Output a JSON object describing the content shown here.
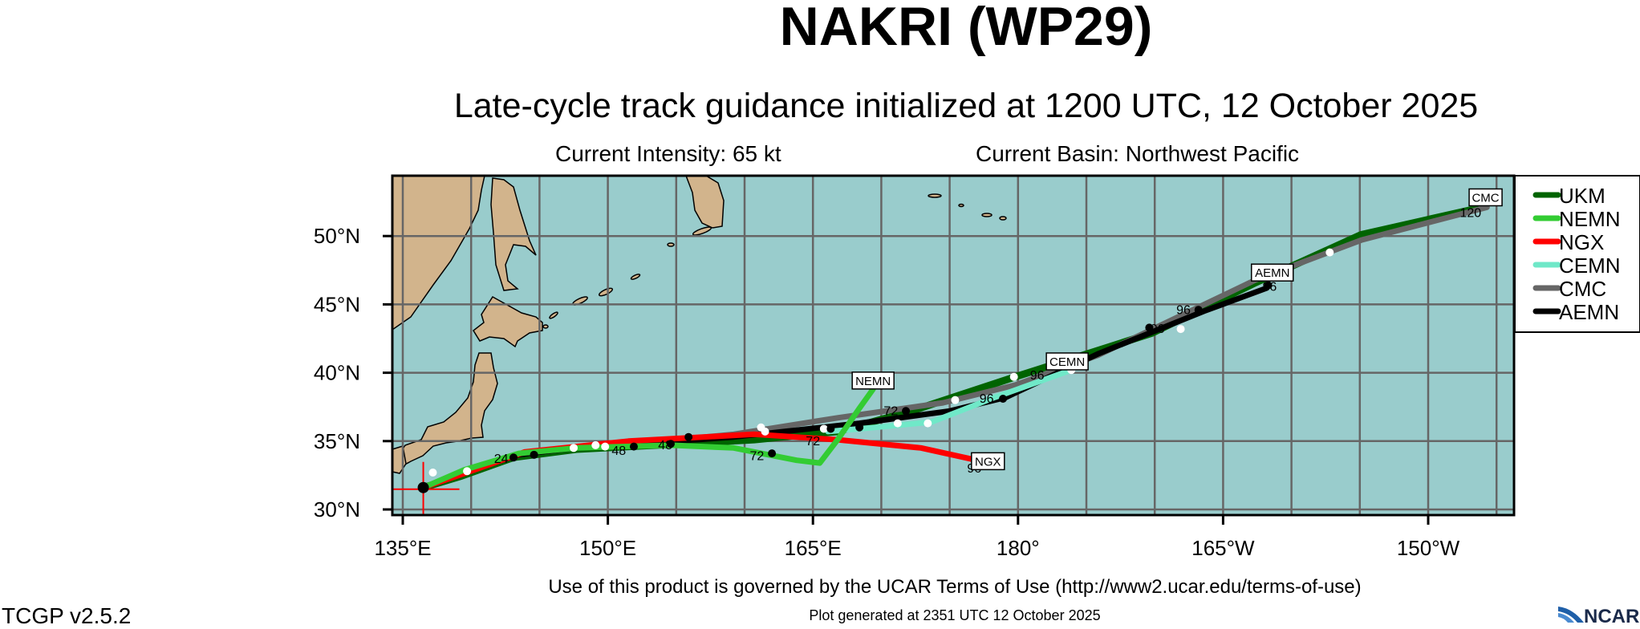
{
  "header": {
    "title": "NAKRI (WP29)",
    "subtitle": "Late-cycle track guidance initialized at 1200 UTC, 12 October 2025",
    "intensity": "Current Intensity: 65 kt",
    "basin": "Current Basin: Northwest Pacific"
  },
  "map": {
    "projection": "cylindrical equidistant",
    "lon_range": [
      134.3,
      216.4
    ],
    "lat_range": [
      29.6,
      54.4
    ],
    "grid_step_deg": 5,
    "ocean_color": "#99cccc",
    "land_color": "#d2b48c",
    "grid_color": "#666666",
    "lon_ticks": [
      {
        "lon": 135,
        "label": "135°E"
      },
      {
        "lon": 150,
        "label": "150°E"
      },
      {
        "lon": 165,
        "label": "165°E"
      },
      {
        "lon": 180,
        "label": "180°"
      },
      {
        "lon": 195,
        "label": "165°W"
      },
      {
        "lon": 210,
        "label": "150°W"
      }
    ],
    "lat_ticks": [
      {
        "lat": 30,
        "label": "30°N"
      },
      {
        "lat": 35,
        "label": "35°N"
      },
      {
        "lat": 40,
        "label": "40°N"
      },
      {
        "lat": 45,
        "label": "45°N"
      },
      {
        "lat": 50,
        "label": "50°N"
      }
    ],
    "initial_position": {
      "lon": 136.5,
      "lat": 31.6,
      "cross_color": "#ff0000"
    }
  },
  "tracks": [
    {
      "name": "UKM",
      "color": "#006400",
      "label_box": false,
      "points": [
        [
          136.5,
          31.6
        ],
        [
          139.3,
          32.45
        ],
        [
          143.1,
          33.8
        ],
        [
          147.7,
          34.4
        ],
        [
          155.4,
          34.8
        ],
        [
          160.7,
          35.1
        ],
        [
          166.8,
          35.7
        ],
        [
          172.2,
          37.2
        ],
        [
          179.8,
          39.7
        ],
        [
          189.8,
          42.9
        ],
        [
          197.4,
          46.6
        ],
        [
          205.1,
          50.1
        ],
        [
          213.5,
          52.0
        ]
      ]
    },
    {
      "name": "CMC",
      "color": "#666666",
      "label_box": true,
      "label_at": [
        214.2,
        52.8
      ],
      "points": [
        [
          136.5,
          31.6
        ],
        [
          139.5,
          32.7
        ],
        [
          143.5,
          34.0
        ],
        [
          150,
          34.8
        ],
        [
          155,
          35.1
        ],
        [
          159.2,
          35.5
        ],
        [
          166.8,
          36.7
        ],
        [
          174.5,
          37.8
        ],
        [
          179.8,
          39.1
        ],
        [
          185.9,
          41.3
        ],
        [
          197.4,
          46.8
        ],
        [
          205.1,
          49.7
        ],
        [
          214.3,
          52.1
        ]
      ]
    },
    {
      "name": "AEMN",
      "color": "#000000",
      "label_box": true,
      "label_at": [
        198.6,
        47.3
      ],
      "points": [
        [
          136.5,
          31.6
        ],
        [
          139.5,
          32.7
        ],
        [
          143.5,
          34.0
        ],
        [
          150,
          34.8
        ],
        [
          155,
          35.0
        ],
        [
          159.2,
          35.3
        ],
        [
          168.4,
          36.3
        ],
        [
          175,
          37.2
        ],
        [
          179.1,
          38.2
        ],
        [
          185.9,
          41.4
        ],
        [
          193.6,
          44.5
        ],
        [
          198.2,
          46.2
        ]
      ]
    },
    {
      "name": "CEMN",
      "color": "#70e8c8",
      "label_box": true,
      "label_at": [
        183.6,
        40.8
      ],
      "points": [
        [
          166.1,
          35.7
        ],
        [
          169.5,
          36.0
        ],
        [
          173.7,
          36.4
        ],
        [
          178.3,
          38.2
        ],
        [
          183.9,
          40.2
        ]
      ]
    },
    {
      "name": "NGX",
      "color": "#ff0000",
      "label_box": true,
      "label_at": [
        177.8,
        33.5
      ],
      "points": [
        [
          136.5,
          31.6
        ],
        [
          139.7,
          32.7
        ],
        [
          143.9,
          34.2
        ],
        [
          151.5,
          35.0
        ],
        [
          160.7,
          35.5
        ],
        [
          166.8,
          35.1
        ],
        [
          172.9,
          34.5
        ],
        [
          177.9,
          33.4
        ]
      ]
    },
    {
      "name": "NEMN",
      "color": "#33cc33",
      "label_box": true,
      "label_at": [
        169.4,
        39.4
      ],
      "points": [
        [
          136.5,
          31.6
        ],
        [
          139.5,
          32.9
        ],
        [
          143.5,
          34.1
        ],
        [
          147.7,
          34.5
        ],
        [
          154.6,
          34.7
        ],
        [
          159.2,
          34.5
        ],
        [
          163.8,
          33.6
        ],
        [
          165.5,
          33.4
        ],
        [
          166.8,
          35.1
        ],
        [
          168.4,
          37.4
        ],
        [
          169.4,
          38.8
        ]
      ]
    }
  ],
  "markers_white": [
    [
      137.2,
      32.7
    ],
    [
      139.7,
      32.8
    ],
    [
      147.5,
      34.5
    ],
    [
      149.1,
      34.7
    ],
    [
      149.8,
      34.6
    ],
    [
      161.2,
      36.0
    ],
    [
      161.5,
      35.7
    ],
    [
      165.8,
      35.9
    ],
    [
      171.2,
      36.3
    ],
    [
      173.4,
      36.3
    ],
    [
      175.4,
      38.0
    ],
    [
      179.7,
      39.7
    ],
    [
      183.9,
      40.2
    ],
    [
      191.9,
      43.2
    ],
    [
      202.8,
      48.8
    ]
  ],
  "markers_black": [
    [
      136.5,
      31.6
    ],
    [
      143.1,
      33.8
    ],
    [
      144.6,
      34.0
    ],
    [
      151.9,
      34.6
    ],
    [
      154.6,
      34.8
    ],
    [
      155.9,
      35.3
    ],
    [
      162.0,
      34.1
    ],
    [
      166.3,
      35.9
    ],
    [
      168.4,
      36.0
    ],
    [
      171.8,
      37.2
    ],
    [
      178.9,
      38.1
    ],
    [
      189.6,
      43.3
    ],
    [
      193.2,
      44.6
    ],
    [
      198.3,
      46.4
    ]
  ],
  "hour_labels": [
    {
      "text": "24",
      "lon": 142.2,
      "lat": 33.4
    },
    {
      "text": "48",
      "lon": 150.8,
      "lat": 34.0
    },
    {
      "text": "48",
      "lon": 154.2,
      "lat": 34.4
    },
    {
      "text": "72",
      "lon": 160.9,
      "lat": 33.6
    },
    {
      "text": "72",
      "lon": 165.0,
      "lat": 34.7
    },
    {
      "text": "72",
      "lon": 170.7,
      "lat": 36.9
    },
    {
      "text": "96",
      "lon": 176.8,
      "lat": 32.7
    },
    {
      "text": "96",
      "lon": 177.7,
      "lat": 37.8
    },
    {
      "text": "96",
      "lon": 181.4,
      "lat": 39.5
    },
    {
      "text": "96",
      "lon": 190.2,
      "lat": 42.9
    },
    {
      "text": "96",
      "lon": 192.1,
      "lat": 44.3
    },
    {
      "text": "96",
      "lon": 198.4,
      "lat": 46.0
    },
    {
      "text": "120",
      "lon": 213.1,
      "lat": 51.4
    }
  ],
  "legend": {
    "placement": "right",
    "items": [
      {
        "label": "UKM",
        "color": "#006400"
      },
      {
        "label": "NEMN",
        "color": "#33cc33"
      },
      {
        "label": "NGX",
        "color": "#ff0000"
      },
      {
        "label": "CEMN",
        "color": "#70e8c8"
      },
      {
        "label": "CMC",
        "color": "#666666"
      },
      {
        "label": "AEMN",
        "color": "#000000"
      }
    ]
  },
  "footer": {
    "terms": "Use of this product is governed by the UCAR Terms of Use (http://www2.ucar.edu/terms-of-use)",
    "generated": "Plot generated at 2351 UTC   12 October 2025",
    "version": "TCGP v2.5.2",
    "logo": "NCAR"
  }
}
